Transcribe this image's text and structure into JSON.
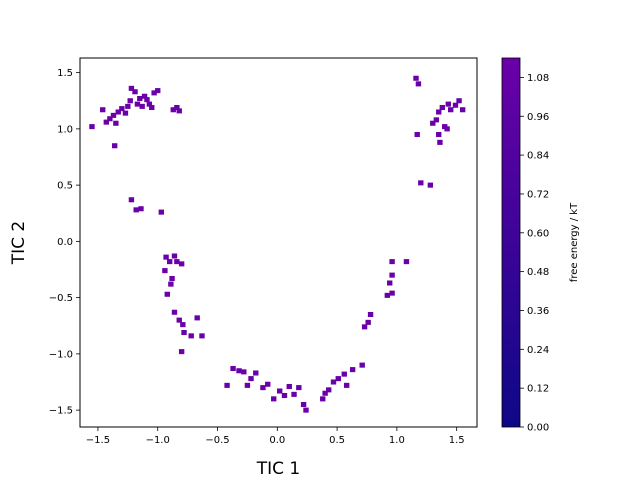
{
  "chart_data": {
    "type": "heatmap",
    "title": "",
    "xlabel": "TIC 1",
    "ylabel": "TIC 2",
    "xlim": [
      -1.65,
      1.67
    ],
    "ylim": [
      -1.65,
      1.63
    ],
    "xticks": [
      -1.5,
      -1.0,
      -0.5,
      0.0,
      0.5,
      1.0,
      1.5
    ],
    "xtick_labels": [
      "−1.5",
      "−1.0",
      "−0.5",
      "0.0",
      "0.5",
      "1.0",
      "1.5"
    ],
    "yticks": [
      -1.5,
      -1.0,
      -0.5,
      0.0,
      0.5,
      1.0,
      1.5
    ],
    "ytick_labels": [
      "−1.5",
      "−1.0",
      "−0.5",
      "0.0",
      "0.5",
      "1.0",
      "1.5"
    ],
    "grid": false,
    "colorbar": {
      "label": "free energy / kT",
      "range": [
        0.0,
        1.14
      ],
      "ticks": [
        0.0,
        0.12,
        0.24,
        0.36,
        0.48,
        0.6,
        0.72,
        0.84,
        0.96,
        1.08
      ],
      "tick_labels": [
        "0.00",
        "0.12",
        "0.24",
        "0.36",
        "0.48",
        "0.60",
        "0.72",
        "0.84",
        "0.96",
        "1.08"
      ],
      "color_low": "#0d0887",
      "color_high": "#6a00a8"
    },
    "cell_color": "#6a00a8",
    "points": [
      [
        -1.55,
        1.02
      ],
      [
        -1.46,
        1.17
      ],
      [
        -1.43,
        1.06
      ],
      [
        -1.4,
        1.09
      ],
      [
        -1.37,
        1.12
      ],
      [
        -1.35,
        1.05
      ],
      [
        -1.33,
        1.15
      ],
      [
        -1.3,
        1.18
      ],
      [
        -1.27,
        1.14
      ],
      [
        -1.25,
        1.2
      ],
      [
        -1.23,
        1.25
      ],
      [
        -1.22,
        1.36
      ],
      [
        -1.19,
        1.33
      ],
      [
        -1.17,
        1.22
      ],
      [
        -1.15,
        1.27
      ],
      [
        -1.13,
        1.2
      ],
      [
        -1.11,
        1.29
      ],
      [
        -1.09,
        1.26
      ],
      [
        -1.07,
        1.22
      ],
      [
        -1.05,
        1.19
      ],
      [
        -1.03,
        1.32
      ],
      [
        -1.0,
        1.34
      ],
      [
        -0.87,
        1.17
      ],
      [
        -0.84,
        1.19
      ],
      [
        -0.82,
        1.16
      ],
      [
        -1.36,
        0.85
      ],
      [
        -1.22,
        0.37
      ],
      [
        -1.18,
        0.28
      ],
      [
        -1.14,
        0.29
      ],
      [
        -0.97,
        0.26
      ],
      [
        -0.94,
        -0.26
      ],
      [
        -0.93,
        -0.14
      ],
      [
        -0.92,
        -0.47
      ],
      [
        -0.9,
        -0.18
      ],
      [
        -0.89,
        -0.38
      ],
      [
        -0.88,
        -0.33
      ],
      [
        -0.86,
        -0.13
      ],
      [
        -0.84,
        -0.18
      ],
      [
        -0.8,
        -0.2
      ],
      [
        -0.86,
        -0.63
      ],
      [
        -0.82,
        -0.7
      ],
      [
        -0.79,
        -0.74
      ],
      [
        -0.78,
        -0.81
      ],
      [
        -0.72,
        -0.84
      ],
      [
        -0.67,
        -0.68
      ],
      [
        -0.63,
        -0.84
      ],
      [
        -0.8,
        -0.98
      ],
      [
        -0.42,
        -1.28
      ],
      [
        -0.37,
        -1.13
      ],
      [
        -0.32,
        -1.15
      ],
      [
        -0.28,
        -1.16
      ],
      [
        -0.25,
        -1.28
      ],
      [
        -0.22,
        -1.22
      ],
      [
        -0.18,
        -1.17
      ],
      [
        -0.12,
        -1.3
      ],
      [
        -0.08,
        -1.27
      ],
      [
        -0.03,
        -1.4
      ],
      [
        0.02,
        -1.33
      ],
      [
        0.06,
        -1.37
      ],
      [
        0.1,
        -1.29
      ],
      [
        0.14,
        -1.36
      ],
      [
        0.18,
        -1.3
      ],
      [
        0.22,
        -1.45
      ],
      [
        0.24,
        -1.5
      ],
      [
        0.38,
        -1.4
      ],
      [
        0.4,
        -1.35
      ],
      [
        0.43,
        -1.32
      ],
      [
        0.47,
        -1.25
      ],
      [
        0.51,
        -1.22
      ],
      [
        0.56,
        -1.18
      ],
      [
        0.58,
        -1.28
      ],
      [
        0.63,
        -1.14
      ],
      [
        0.71,
        -1.1
      ],
      [
        0.73,
        -0.76
      ],
      [
        0.76,
        -0.72
      ],
      [
        0.78,
        -0.65
      ],
      [
        0.92,
        -0.48
      ],
      [
        0.96,
        -0.46
      ],
      [
        0.94,
        -0.37
      ],
      [
        0.96,
        -0.3
      ],
      [
        0.96,
        -0.18
      ],
      [
        1.08,
        -0.18
      ],
      [
        1.16,
        1.45
      ],
      [
        1.18,
        1.4
      ],
      [
        1.17,
        0.95
      ],
      [
        1.2,
        0.52
      ],
      [
        1.28,
        0.5
      ],
      [
        1.3,
        1.05
      ],
      [
        1.33,
        1.08
      ],
      [
        1.35,
        0.95
      ],
      [
        1.36,
        0.88
      ],
      [
        1.35,
        1.15
      ],
      [
        1.38,
        1.19
      ],
      [
        1.4,
        1.02
      ],
      [
        1.42,
        1.0
      ],
      [
        1.43,
        1.22
      ],
      [
        1.45,
        1.17
      ],
      [
        1.49,
        1.21
      ],
      [
        1.52,
        1.25
      ],
      [
        1.55,
        1.17
      ]
    ]
  }
}
